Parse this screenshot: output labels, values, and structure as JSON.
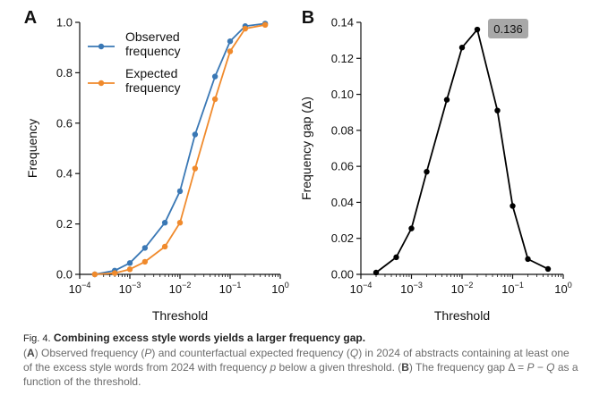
{
  "chart_data": [
    {
      "panel": "A",
      "type": "line",
      "xscale": "log",
      "xlim": [
        0.0001,
        1
      ],
      "ylim": [
        0,
        1.0
      ],
      "xlabel": "Threshold",
      "ylabel": "Frequency",
      "legend_position": "upper-left",
      "yticks": [
        "0.0",
        "0.2",
        "0.4",
        "0.6",
        "0.8",
        "1.0"
      ],
      "colors": {
        "observed": "#3a78b5",
        "expected": "#f08a2c"
      },
      "series": [
        {
          "name": "Observed frequency",
          "legend_lines": [
            "Observed",
            "frequency"
          ],
          "x": [
            0.0002,
            0.0005,
            0.001,
            0.002,
            0.005,
            0.01,
            0.02,
            0.05,
            0.1,
            0.2,
            0.5
          ],
          "y": [
            0.0,
            0.015,
            0.045,
            0.105,
            0.205,
            0.33,
            0.555,
            0.785,
            0.925,
            0.985,
            0.995
          ]
        },
        {
          "name": "Expected frequency",
          "legend_lines": [
            "Expected",
            "frequency"
          ],
          "x": [
            0.0002,
            0.0005,
            0.001,
            0.002,
            0.005,
            0.01,
            0.02,
            0.05,
            0.1,
            0.2,
            0.5
          ],
          "y": [
            0.0,
            0.005,
            0.02,
            0.05,
            0.11,
            0.205,
            0.42,
            0.695,
            0.885,
            0.975,
            0.99
          ]
        }
      ]
    },
    {
      "panel": "B",
      "type": "line",
      "xscale": "log",
      "xlim": [
        0.0001,
        1
      ],
      "ylim": [
        0,
        0.14
      ],
      "xlabel": "Threshold",
      "ylabel": "Frequency gap (Δ)",
      "yticks": [
        "0.00",
        "0.02",
        "0.04",
        "0.06",
        "0.08",
        "0.10",
        "0.12",
        "0.14"
      ],
      "color": "#000000",
      "annotation": "0.136",
      "series": [
        {
          "name": "",
          "x": [
            0.0002,
            0.0005,
            0.001,
            0.002,
            0.005,
            0.01,
            0.02,
            0.05,
            0.1,
            0.2,
            0.5
          ],
          "y": [
            0.001,
            0.0095,
            0.0255,
            0.057,
            0.097,
            0.126,
            0.136,
            0.091,
            0.038,
            0.0085,
            0.003
          ]
        }
      ]
    }
  ],
  "caption": {
    "fig_label": "Fig. 4.",
    "title": "Combining excess style words yields a larger frequency gap.",
    "p1": "(",
    "A": "A",
    "p2": ") Observed frequency (",
    "P": "P",
    "p3": ") and counterfactual expected frequency (",
    "Q": "Q",
    "p4": ") in 2024 of abstracts containing at least one of the excess style words from 2024 with frequency ",
    "p": "p",
    "p5": " below a given threshold. (",
    "B": "B",
    "p6": ") The frequency gap Δ = ",
    "P2": "P",
    "minus": " − ",
    "Q2": "Q",
    "p7": " as a function of the threshold."
  }
}
